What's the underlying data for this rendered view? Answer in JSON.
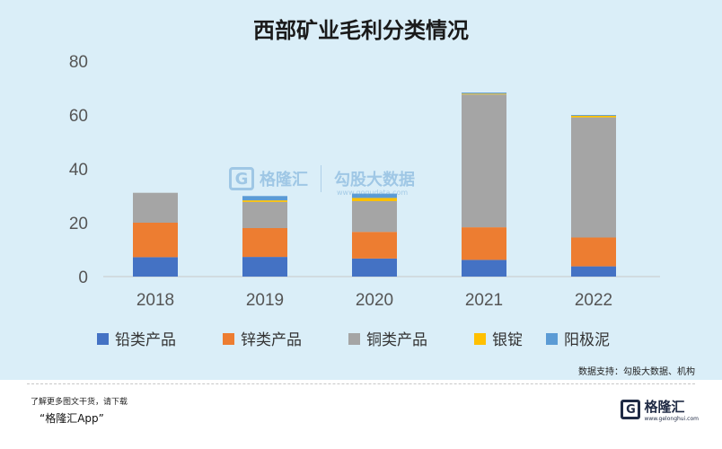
{
  "title": "西部矿业毛利分类情况",
  "source": "数据支持：勾股大数据、机构",
  "watermark": {
    "logo_letter": "G",
    "name": "格隆汇",
    "text": "勾股大数据",
    "url": "www.gogudata.com"
  },
  "footer": {
    "hint": "了解更多图文干货，请下载",
    "app": "“格隆汇App”",
    "brand_letter": "G",
    "brand_name": "格隆汇",
    "brand_url": "www.gelonghui.com"
  },
  "chart_data": {
    "type": "bar",
    "stacked": true,
    "categories": [
      "2018",
      "2019",
      "2020",
      "2021",
      "2022"
    ],
    "series": [
      {
        "name": "铅类产品",
        "color": "#4472c4",
        "values": [
          7.2,
          7.3,
          6.7,
          6.2,
          3.8
        ]
      },
      {
        "name": "锌类产品",
        "color": "#ed7d31",
        "values": [
          12.8,
          10.7,
          9.9,
          12.1,
          10.7
        ]
      },
      {
        "name": "铜类产品",
        "color": "#a5a5a5",
        "values": [
          11.1,
          9.7,
          11.4,
          49.3,
          44.6
        ]
      },
      {
        "name": "银锭",
        "color": "#ffc000",
        "values": [
          0,
          0.6,
          1.2,
          0.3,
          0.6
        ]
      },
      {
        "name": "阳极泥",
        "color": "#5b9bd5",
        "values": [
          0,
          1.6,
          1.6,
          0.4,
          0.3
        ]
      }
    ],
    "yticks": [
      "0",
      "20",
      "40",
      "60",
      "80"
    ],
    "ylim": [
      0,
      80
    ],
    "grid": false,
    "legend_position": "bottom"
  }
}
